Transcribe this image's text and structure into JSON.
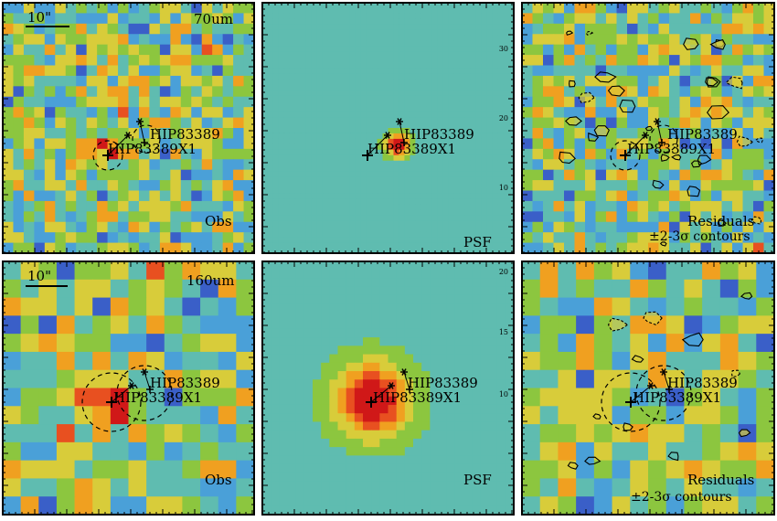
{
  "figure": {
    "rows": [
      {
        "band": "70um",
        "scalebar_label": "10\"",
        "panels": [
          {
            "kind": "obs",
            "label": "Obs",
            "caption_line1": "",
            "caption_line2": ""
          },
          {
            "kind": "psf",
            "label": "PSF",
            "caption_line1": "",
            "caption_line2": ""
          },
          {
            "kind": "residual",
            "label": "",
            "caption_line1": "Residuals",
            "caption_line2": "±2-3σ contours"
          }
        ],
        "sources": [
          {
            "name": "HIP83389",
            "role": "primary"
          },
          {
            "name": "HIP83389X1",
            "role": "companion"
          }
        ],
        "tick_labels": [
          "30",
          "20",
          "10"
        ]
      },
      {
        "band": "160um",
        "scalebar_label": "10\"",
        "panels": [
          {
            "kind": "obs",
            "label": "Obs",
            "caption_line1": "",
            "caption_line2": ""
          },
          {
            "kind": "psf",
            "label": "PSF",
            "caption_line1": "",
            "caption_line2": ""
          },
          {
            "kind": "residual",
            "label": "",
            "caption_line1": "Residuals",
            "caption_line2": "±2-3σ contours"
          }
        ],
        "sources": [
          {
            "name": "HIP83389",
            "role": "primary"
          },
          {
            "name": "HIP83389X1",
            "role": "companion"
          }
        ],
        "tick_labels": [
          "20",
          "15",
          "10"
        ]
      }
    ],
    "colormap": [
      "#2a1a7a",
      "#3a5fc8",
      "#4aa0d8",
      "#5fbcb0",
      "#8cc63f",
      "#d8cc3a",
      "#f0a020",
      "#e85020",
      "#d01818"
    ]
  }
}
